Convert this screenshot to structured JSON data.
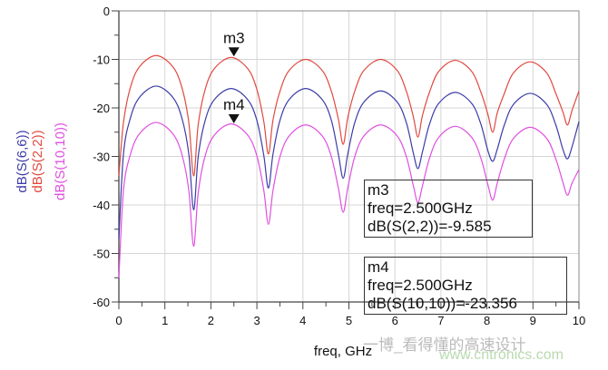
{
  "chart_data": {
    "type": "line",
    "xlabel": "freq, GHz",
    "ylabels": [
      "dB(S(6,6))",
      "dB(S(2,2))",
      "dB(S(10,10))"
    ],
    "xlim": [
      0,
      10
    ],
    "ylim": [
      -60,
      0
    ],
    "xticks": [
      "0",
      "1",
      "2",
      "3",
      "4",
      "5",
      "6",
      "7",
      "8",
      "9",
      "10"
    ],
    "yticks": [
      "0",
      "-10",
      "-20",
      "-30",
      "-40",
      "-50",
      "-60"
    ],
    "grid": true,
    "x": [
      0,
      0.1,
      0.25,
      0.45,
      0.81,
      1.17,
      1.37,
      1.52,
      1.625,
      1.725,
      1.875,
      2.075,
      2.44,
      2.8,
      3.0,
      3.15,
      3.25,
      3.35,
      3.5,
      3.7,
      4.06,
      4.42,
      4.62,
      4.77,
      4.875,
      4.975,
      5.125,
      5.325,
      5.69,
      6.05,
      6.25,
      6.4,
      6.5,
      6.6,
      6.75,
      6.95,
      7.31,
      7.67,
      7.87,
      8.02,
      8.125,
      8.225,
      8.375,
      8.575,
      8.94,
      9.3,
      9.5,
      9.65,
      9.75,
      9.85,
      10.0
    ],
    "series": [
      {
        "name": "dB(S(6,6))",
        "color": "#3c3ca8",
        "values": [
          -47,
          -29.5,
          -22.1,
          -17.8,
          -15.5,
          -17.8,
          -22.1,
          -29.5,
          -41,
          -30,
          -22.6,
          -18.3,
          -16,
          -18.3,
          -22.6,
          -29.8,
          -36.5,
          -29.5,
          -22.6,
          -18.3,
          -16,
          -18.3,
          -22.6,
          -29.5,
          -34.5,
          -29.5,
          -23.1,
          -18.8,
          -16.5,
          -18.8,
          -23.1,
          -29.3,
          -32.5,
          -29,
          -23.4,
          -19.1,
          -16.8,
          -19.1,
          -23.4,
          -28.8,
          -31,
          -28.5,
          -23.6,
          -19.3,
          -17,
          -19.3,
          -23.6,
          -28.5,
          -30.5,
          -28,
          -22.8
        ]
      },
      {
        "name": "dB(S(2,2))",
        "color": "#e04a40",
        "values": [
          -34,
          -23,
          -15.8,
          -11.5,
          -9.2,
          -11.5,
          -15.8,
          -23,
          -34,
          -23.4,
          -16.2,
          -11.9,
          -9.6,
          -11.9,
          -16.2,
          -22.8,
          -29.5,
          -22.5,
          -16.6,
          -12.3,
          -10,
          -12.3,
          -16.6,
          -22.3,
          -27.5,
          -22,
          -16.6,
          -12.3,
          -10,
          -12.3,
          -16.6,
          -21.8,
          -26,
          -21.5,
          -16.8,
          -12.5,
          -10.2,
          -12.5,
          -16.8,
          -21.3,
          -25,
          -21,
          -17.1,
          -12.8,
          -10.5,
          -12.8,
          -17.1,
          -20.8,
          -23.5,
          -20.5,
          -16.5
        ]
      },
      {
        "name": "dB(S(10,10))",
        "color": "#e050e0",
        "values": [
          -55,
          -37,
          -29.6,
          -25.3,
          -23,
          -25.3,
          -29.6,
          -37,
          -48.5,
          -37.5,
          -29.9,
          -25.6,
          -23.3,
          -25.6,
          -29.9,
          -37,
          -44,
          -37,
          -30.1,
          -25.8,
          -23.5,
          -25.8,
          -30.1,
          -36.5,
          -41.5,
          -36.5,
          -30.1,
          -25.8,
          -23.5,
          -25.8,
          -30.1,
          -36,
          -39.5,
          -36,
          -30.4,
          -26.1,
          -23.8,
          -26.1,
          -30.4,
          -35.8,
          -39,
          -35.5,
          -30.6,
          -26.3,
          -24,
          -26.3,
          -30.6,
          -35.3,
          -38,
          -35.5,
          -32.7
        ]
      }
    ],
    "markers": [
      {
        "label": "m3",
        "x": 2.5,
        "y": -9.585,
        "lines": [
          "m3",
          "freq=2.500GHz",
          "dB(S(2,2))=-9.585"
        ]
      },
      {
        "label": "m4",
        "x": 2.5,
        "y": -23.356,
        "lines": [
          "m4",
          "freq=2.500GHz",
          "dB(S(10,10))=-23.356"
        ]
      }
    ]
  },
  "watermark": {
    "line1": "一博_看得懂的高速设计",
    "line2": "www.cntronics.com"
  }
}
